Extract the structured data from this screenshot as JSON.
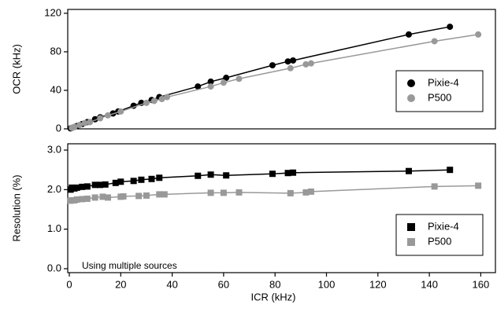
{
  "chart_data": [
    {
      "type": "scatter",
      "marker": "circle",
      "ylabel": "OCR (kHz)",
      "legend": "lower right",
      "xlim": [
        0,
        166
      ],
      "ylim": [
        0,
        124
      ],
      "yticks": [
        0,
        40,
        80,
        120
      ],
      "series": [
        {
          "name": "Pixie-4",
          "color": "#000000",
          "x": [
            0.5,
            1,
            2,
            3,
            5,
            7,
            10,
            12,
            17,
            19,
            25,
            28,
            32,
            35,
            50,
            55,
            61,
            79,
            85,
            87,
            132,
            148
          ],
          "values": [
            0.5,
            1,
            2,
            3,
            5,
            7,
            10,
            12,
            16,
            18,
            24,
            27,
            30,
            33,
            44,
            49,
            53,
            66,
            70,
            71,
            98,
            106
          ]
        },
        {
          "name": "P500",
          "color": "#999999",
          "x": [
            1,
            2,
            4,
            6,
            8,
            12,
            15,
            20,
            30,
            33,
            36,
            38,
            55,
            60,
            66,
            86,
            92,
            94,
            142,
            159
          ],
          "values": [
            1,
            2,
            4,
            6,
            7,
            11,
            14,
            18,
            27,
            29,
            31,
            33,
            44,
            48,
            52,
            63,
            67,
            68,
            91,
            98
          ]
        }
      ]
    },
    {
      "type": "scatter",
      "marker": "square",
      "ylabel": "Resolution (%)",
      "xlabel": "ICR (kHz)",
      "legend": "lower right",
      "annotation": "Using multiple sources",
      "xlim": [
        0,
        166
      ],
      "xticks": [
        0,
        20,
        40,
        60,
        80,
        100,
        120,
        140,
        160
      ],
      "ylim": [
        -0.1,
        3.16
      ],
      "yticks": [
        {
          "value": 0,
          "label": "0.0"
        },
        {
          "value": 1,
          "label": "1.0"
        },
        {
          "value": 2,
          "label": "2.0"
        },
        {
          "value": 3,
          "label": "3.0"
        }
      ],
      "series": [
        {
          "name": "Pixie-4",
          "color": "#000000",
          "x": [
            0.5,
            1,
            2,
            3,
            5,
            7,
            10,
            12,
            14,
            18,
            20,
            25,
            28,
            32,
            35,
            50,
            55,
            61,
            79,
            85,
            87,
            132,
            148
          ],
          "values": [
            2.0,
            2.05,
            2.03,
            2.05,
            2.07,
            2.08,
            2.12,
            2.12,
            2.13,
            2.17,
            2.2,
            2.22,
            2.25,
            2.27,
            2.3,
            2.35,
            2.38,
            2.36,
            2.4,
            2.42,
            2.43,
            2.47,
            2.5
          ]
        },
        {
          "name": "P500",
          "color": "#999999",
          "x": [
            0.5,
            1,
            2,
            3,
            5,
            7,
            10,
            13,
            15,
            20,
            21,
            27,
            30,
            35,
            37,
            55,
            60,
            66,
            86,
            92,
            94,
            142,
            159
          ],
          "values": [
            1.72,
            1.73,
            1.73,
            1.75,
            1.76,
            1.77,
            1.8,
            1.82,
            1.8,
            1.82,
            1.83,
            1.84,
            1.85,
            1.88,
            1.88,
            1.92,
            1.92,
            1.93,
            1.91,
            1.93,
            1.95,
            2.08,
            2.1
          ]
        }
      ]
    }
  ]
}
